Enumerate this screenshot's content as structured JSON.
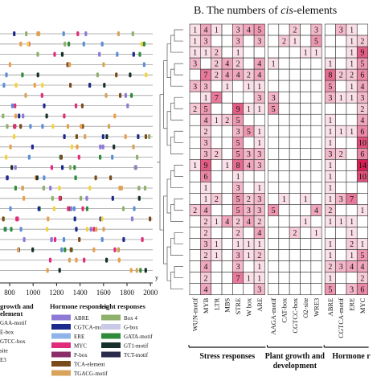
{
  "panel_b": {
    "title_prefix": "B. The numbers of ",
    "title_italic": "cis",
    "title_suffix": "-elements"
  },
  "panel_a": {
    "x_ticks": [
      "800",
      "1000",
      "1200",
      "1400",
      "1600",
      "1800",
      "2000"
    ],
    "x_axis_end": "y",
    "legend_groups": [
      {
        "title": "growth and",
        "subtitle": "element",
        "items": [
          "GAA-motif",
          "E-box",
          "GTCC-box",
          "site",
          "E3"
        ],
        "colors": [
          "#e8a04a",
          "#5b8fd6",
          "#2ea36b",
          "#d8d8d8",
          "#8c8c8c"
        ]
      },
      {
        "title": "Hormone responses",
        "items": [
          "ABRE",
          "CGTCA-motif",
          "ERE",
          "MYC",
          "P-box",
          "TCA-element",
          "TGACG-motif"
        ],
        "colors": [
          "#8f79d6",
          "#1b2a8c",
          "#8fb3e8",
          "#e02c7a",
          "#8a2e6a",
          "#7a4b1b",
          "#d8a35a"
        ]
      },
      {
        "title": "Light responses",
        "items": [
          "Box 4",
          "G-box",
          "GATA-motif",
          "GT1-motif",
          "TCT-motif"
        ],
        "colors": [
          "#8fb06a",
          "#c9c9e8",
          "#2e8c3a",
          "#18302a",
          "#2a2a4a"
        ]
      }
    ]
  },
  "chart_data": {
    "type": "heatmap",
    "columns": [
      "WUN-motif",
      "MYB",
      "LTR",
      "MBS",
      "STRE",
      "W box",
      "ARE",
      "AAGA-motif",
      "CAT-box",
      "CGTCC-box",
      "O2-site",
      "WRE3",
      "ABRE",
      "CGTCA-motif",
      "ERE",
      "MYC"
    ],
    "column_groups": [
      {
        "label": "Stress responses",
        "span": 7
      },
      {
        "label": "Plant growth and development",
        "span": 5
      },
      {
        "label": "Hormone r",
        "span": 4
      }
    ],
    "rows": [
      [
        "1",
        "4",
        "1",
        "",
        "3",
        "4",
        "5",
        "",
        "",
        "2",
        "",
        "3",
        "",
        "3",
        "1",
        ""
      ],
      [
        "1",
        "3",
        "",
        "",
        "3",
        "",
        "3",
        "",
        "2",
        "1",
        "",
        "5",
        "",
        "",
        "1",
        "2"
      ],
      [
        "1",
        "1",
        "2",
        "",
        "1",
        "",
        "",
        "",
        "",
        "",
        "1",
        "1",
        "",
        "",
        "1",
        "9"
      ],
      [
        "3",
        "",
        "2",
        "4",
        "2",
        "",
        "4",
        "1",
        "",
        "",
        "",
        "",
        "1",
        "",
        "1",
        "5"
      ],
      [
        "",
        "7",
        "2",
        "4",
        "4",
        "2",
        "4",
        "",
        "",
        "",
        "",
        "",
        "8",
        "2",
        "2",
        "6"
      ],
      [
        "3",
        "3",
        "",
        "1",
        "",
        "1",
        "1",
        "",
        "",
        "",
        "",
        "",
        "5",
        "",
        "1",
        "4"
      ],
      [
        "",
        "1",
        "7",
        "",
        "",
        "",
        "3",
        "3",
        "",
        "",
        "",
        "",
        "3",
        "1",
        "1",
        "3"
      ],
      [
        "2",
        "5",
        "",
        "",
        "9",
        "1",
        "1",
        "5",
        "",
        "",
        "",
        "",
        "",
        "",
        "",
        "2"
      ],
      [
        "",
        "4",
        "1",
        "2",
        "5",
        "",
        "",
        "",
        "",
        "",
        "",
        "",
        "1",
        "",
        "",
        "4"
      ],
      [
        "",
        "2",
        "",
        "",
        "3",
        "5",
        "1",
        "",
        "",
        "",
        "",
        "",
        "1",
        "1",
        "1",
        "6"
      ],
      [
        "",
        "3",
        "",
        "",
        "5",
        "",
        "1",
        "",
        "",
        "",
        "",
        "",
        "1",
        "",
        "",
        "10"
      ],
      [
        "",
        "3",
        "2",
        "",
        "5",
        "3",
        "3",
        "",
        "",
        "",
        "",
        "",
        "3",
        "2",
        "",
        "6"
      ],
      [
        "1",
        "9",
        "",
        "1",
        "8",
        "4",
        "3",
        "",
        "",
        "",
        "",
        "",
        "1",
        "",
        "",
        "14"
      ],
      [
        "",
        "6",
        "",
        "",
        "1",
        "",
        "",
        "",
        "",
        "",
        "",
        "",
        "1",
        "",
        "",
        "10"
      ],
      [
        "",
        "1",
        "",
        "",
        "3",
        "",
        "1",
        "",
        "",
        "",
        "",
        "",
        "1",
        "",
        "",
        ""
      ],
      [
        "",
        "1",
        "2",
        "",
        "5",
        "2",
        "3",
        "",
        "1",
        "",
        "1",
        "",
        "1",
        "3",
        "7",
        ""
      ],
      [
        "2",
        "4",
        "",
        "",
        "5",
        "3",
        "3",
        "5",
        "",
        "",
        "",
        "4",
        "2",
        "",
        "",
        "1"
      ],
      [
        "",
        "2",
        "1",
        "4",
        "2",
        "4",
        "2",
        "",
        "",
        "",
        "1",
        "",
        "1",
        "1",
        "1",
        ""
      ],
      [
        "",
        "2",
        "",
        "",
        "2",
        "",
        "4",
        "",
        "",
        "2",
        "",
        "1",
        "",
        "",
        "1",
        ""
      ],
      [
        "",
        "3",
        "1",
        "",
        "1",
        "1",
        "1",
        "",
        "",
        "",
        "",
        "",
        "1",
        "",
        "2",
        "1"
      ],
      [
        "",
        "2",
        "1",
        "",
        "3",
        "1",
        "2",
        "",
        "",
        "",
        "",
        "",
        "1",
        "",
        "1",
        "5"
      ],
      [
        "",
        "4",
        "",
        "",
        "3",
        "",
        "1",
        "",
        "",
        "",
        "",
        "",
        "2",
        "3",
        "4",
        "4"
      ],
      [
        "",
        "2",
        "",
        "",
        "7",
        "1",
        "1",
        "",
        "",
        "",
        "",
        "",
        "1",
        "",
        "",
        "2"
      ],
      [
        "",
        "4",
        "",
        "",
        "",
        "",
        "3",
        "",
        "",
        "",
        "",
        "",
        "5",
        "",
        "3",
        "6"
      ]
    ]
  },
  "colors": {
    "cell_low": "#ffffff",
    "cell_high": "#d81e55",
    "grid": "#333333"
  }
}
